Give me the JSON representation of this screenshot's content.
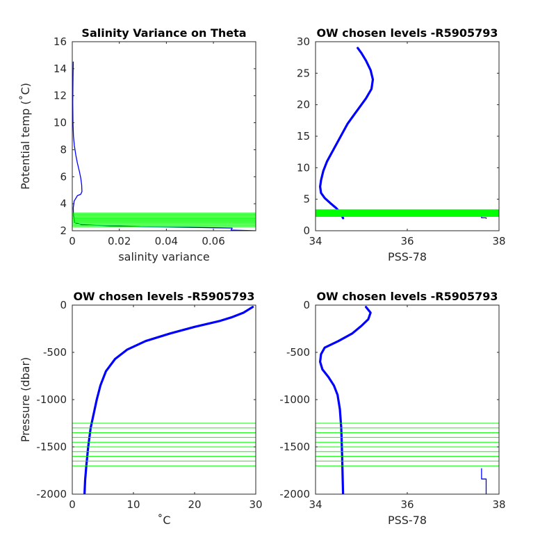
{
  "chart_data": [
    {
      "type": "line",
      "title": "Salinity Variance on Theta",
      "xlabel": "salinity variance",
      "ylabel": "Potential temp (˚C)",
      "xlim": [
        0,
        0.078
      ],
      "ylim": [
        2,
        16
      ],
      "xticks": [
        0,
        0.02,
        0.04,
        0.06
      ],
      "xtick_labels": [
        "0",
        "0.02",
        "0.04",
        "0.06"
      ],
      "yticks": [
        2,
        4,
        6,
        8,
        10,
        12,
        14,
        16
      ],
      "ytick_labels": [
        "2",
        "4",
        "6",
        "8",
        "10",
        "12",
        "14",
        "16"
      ],
      "series": [
        {
          "color": "#0000ff",
          "x": [
            0.0004,
            0.0003,
            0.0002,
            0.0003,
            0.0005,
            0.0009,
            0.0015,
            0.0022,
            0.003,
            0.0036,
            0.004,
            0.0041,
            0.0036,
            0.0022,
            0.0008,
            0.0004,
            0.0005,
            0.001,
            0.004,
            0.01,
            0.02,
            0.03,
            0.04,
            0.05,
            0.06,
            0.068,
            0.0675,
            0.078
          ],
          "y": [
            14.5,
            13.0,
            11.5,
            10.0,
            9.0,
            8.3,
            7.6,
            7.0,
            6.4,
            5.9,
            5.4,
            4.9,
            4.7,
            4.6,
            4.2,
            3.7,
            3.2,
            2.6,
            2.45,
            2.4,
            2.35,
            2.3,
            2.28,
            2.25,
            2.22,
            2.2,
            2.05,
            2.0
          ]
        }
      ],
      "reference_lines": {
        "orientation": "horizontal",
        "color": "#00ff00",
        "values": [
          2.3,
          2.4,
          2.5,
          2.6,
          2.7,
          2.8,
          2.9,
          3.0,
          3.1,
          3.2,
          3.3
        ]
      }
    },
    {
      "type": "line",
      "title": "OW chosen levels -R5905793",
      "xlabel": "PSS-78",
      "ylabel": "",
      "xlim": [
        34,
        38
      ],
      "ylim": [
        0,
        30
      ],
      "xticks": [
        34,
        36,
        38
      ],
      "xtick_labels": [
        "34",
        "36",
        "38"
      ],
      "yticks": [
        0,
        5,
        10,
        15,
        20,
        25,
        30
      ],
      "ytick_labels": [
        "0",
        "5",
        "10",
        "15",
        "20",
        "25",
        "30"
      ],
      "series": [
        {
          "color": "#0000ff",
          "x": [
            34.92,
            35.0,
            35.1,
            35.2,
            35.25,
            35.22,
            35.1,
            34.9,
            34.7,
            34.55,
            34.4,
            34.25,
            34.17,
            34.12,
            34.1,
            34.12,
            34.2,
            34.32,
            34.45,
            34.55,
            34.6
          ],
          "y": [
            29.0,
            28.2,
            27.0,
            25.5,
            24.0,
            22.5,
            21.0,
            19.0,
            17.0,
            15.0,
            13.0,
            11.0,
            9.5,
            8.0,
            7.0,
            6.0,
            5.2,
            4.4,
            3.6,
            2.8,
            2.0
          ]
        },
        {
          "color": "#0000ff",
          "x": [
            37.62,
            37.62,
            37.72,
            37.72
          ],
          "y": [
            2.3,
            2.05,
            2.05,
            1.95
          ]
        }
      ],
      "reference_lines": {
        "orientation": "horizontal",
        "color": "#00ff00",
        "values": [
          2.3,
          2.4,
          2.5,
          2.6,
          2.7,
          2.8,
          2.9,
          3.0,
          3.1,
          3.2,
          3.3
        ]
      }
    },
    {
      "type": "line",
      "title": "OW chosen levels -R5905793",
      "xlabel": "˚C",
      "ylabel": "Pressure (dbar)",
      "xlim": [
        0,
        30
      ],
      "ylim": [
        -2000,
        0
      ],
      "xticks": [
        0,
        10,
        20,
        30
      ],
      "xtick_labels": [
        "0",
        "10",
        "20",
        "30"
      ],
      "yticks": [
        -2000,
        -1500,
        -1000,
        -500,
        0
      ],
      "ytick_labels": [
        "-2000",
        "-1500",
        "-1000",
        "-500",
        "0"
      ],
      "series": [
        {
          "color": "#0000ff",
          "x": [
            29.5,
            28.0,
            26.0,
            24.0,
            20.0,
            16.0,
            12.0,
            9.0,
            7.0,
            5.5,
            4.6,
            4.0,
            3.5,
            3.0,
            2.6,
            2.3,
            2.1,
            2.0
          ],
          "y": [
            -20,
            -80,
            -130,
            -170,
            -230,
            -300,
            -380,
            -470,
            -570,
            -700,
            -850,
            -1000,
            -1150,
            -1300,
            -1500,
            -1700,
            -1850,
            -2000
          ]
        }
      ],
      "reference_lines": {
        "orientation": "horizontal",
        "color": "#00ff00",
        "values": [
          -1250,
          -1300,
          -1350,
          -1400,
          -1450,
          -1500,
          -1550,
          -1600,
          -1650,
          -1700
        ]
      }
    },
    {
      "type": "line",
      "title": "OW chosen levels -R5905793",
      "xlabel": "PSS-78",
      "ylabel": "",
      "xlim": [
        34,
        38
      ],
      "ylim": [
        -2000,
        0
      ],
      "xticks": [
        34,
        36,
        38
      ],
      "xtick_labels": [
        "34",
        "36",
        "38"
      ],
      "yticks": [
        -2000,
        -1500,
        -1000,
        -500,
        0
      ],
      "ytick_labels": [
        "-2000",
        "-1500",
        "-1000",
        "-500",
        "0"
      ],
      "series": [
        {
          "color": "#0000ff",
          "x": [
            35.1,
            35.2,
            35.15,
            35.0,
            34.8,
            34.5,
            34.2,
            34.12,
            34.1,
            34.15,
            34.28,
            34.4,
            34.48,
            34.53,
            34.56,
            34.58,
            34.6
          ],
          "y": [
            -20,
            -80,
            -150,
            -220,
            -300,
            -380,
            -450,
            -520,
            -600,
            -680,
            -760,
            -850,
            -950,
            -1100,
            -1300,
            -1600,
            -2000
          ]
        },
        {
          "color": "#0000ff",
          "x": [
            37.62,
            37.62,
            37.72,
            37.72
          ],
          "y": [
            -1730,
            -1840,
            -1840,
            -2000
          ]
        }
      ],
      "reference_lines": {
        "orientation": "horizontal",
        "color": "#00ff00",
        "values": [
          -1250,
          -1300,
          -1350,
          -1400,
          -1450,
          -1500,
          -1550,
          -1600,
          -1650,
          -1700
        ]
      }
    }
  ]
}
